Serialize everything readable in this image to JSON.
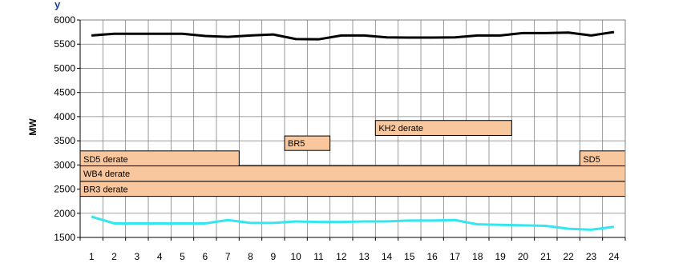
{
  "header_fragment": "y",
  "chart_data": {
    "type": "line",
    "title": "",
    "xlabel": "",
    "ylabel": "MW",
    "ylim": [
      1500,
      6000
    ],
    "yticks": [
      1500,
      2000,
      2500,
      3000,
      3500,
      4000,
      4500,
      5000,
      5500,
      6000
    ],
    "x": [
      1,
      2,
      3,
      4,
      5,
      6,
      7,
      8,
      9,
      10,
      11,
      12,
      13,
      14,
      15,
      16,
      17,
      18,
      19,
      20,
      21,
      22,
      23,
      24
    ],
    "grid": true,
    "series": [
      {
        "color": "#000000",
        "values": [
          5680,
          5715,
          5715,
          5715,
          5715,
          5670,
          5650,
          5680,
          5700,
          5605,
          5600,
          5680,
          5680,
          5640,
          5635,
          5635,
          5640,
          5680,
          5680,
          5730,
          5730,
          5740,
          5680,
          5750
        ]
      },
      {
        "color": "#33e6f0",
        "values": [
          1930,
          1790,
          1790,
          1790,
          1790,
          1790,
          1860,
          1800,
          1800,
          1830,
          1820,
          1820,
          1830,
          1830,
          1850,
          1850,
          1860,
          1770,
          1760,
          1750,
          1740,
          1680,
          1660,
          1720
        ]
      }
    ],
    "annotations": [
      {
        "label": "KH2 derate",
        "x_start": 13.5,
        "x_end": 19.5,
        "y_low": 3610,
        "y_high": 3920
      },
      {
        "label": "BR5",
        "x_start": 9.5,
        "x_end": 11.5,
        "y_low": 3300,
        "y_high": 3600
      },
      {
        "label": "SD5 derate",
        "x_start": 0.5,
        "x_end": 7.5,
        "y_low": 2960,
        "y_high": 3290
      },
      {
        "label": "SD5",
        "x_start": 22.5,
        "x_end": 24.5,
        "y_low": 2960,
        "y_high": 3290
      },
      {
        "label": "WB4 derate",
        "x_start": 0.5,
        "x_end": 24.5,
        "y_low": 2660,
        "y_high": 2980
      },
      {
        "label": "BR3 derate",
        "x_start": 0.5,
        "x_end": 24.5,
        "y_low": 2350,
        "y_high": 2660
      }
    ],
    "annotation_fill": "#f9c79d",
    "annotation_stroke": "#000000",
    "line_color_grid": "#808080"
  }
}
